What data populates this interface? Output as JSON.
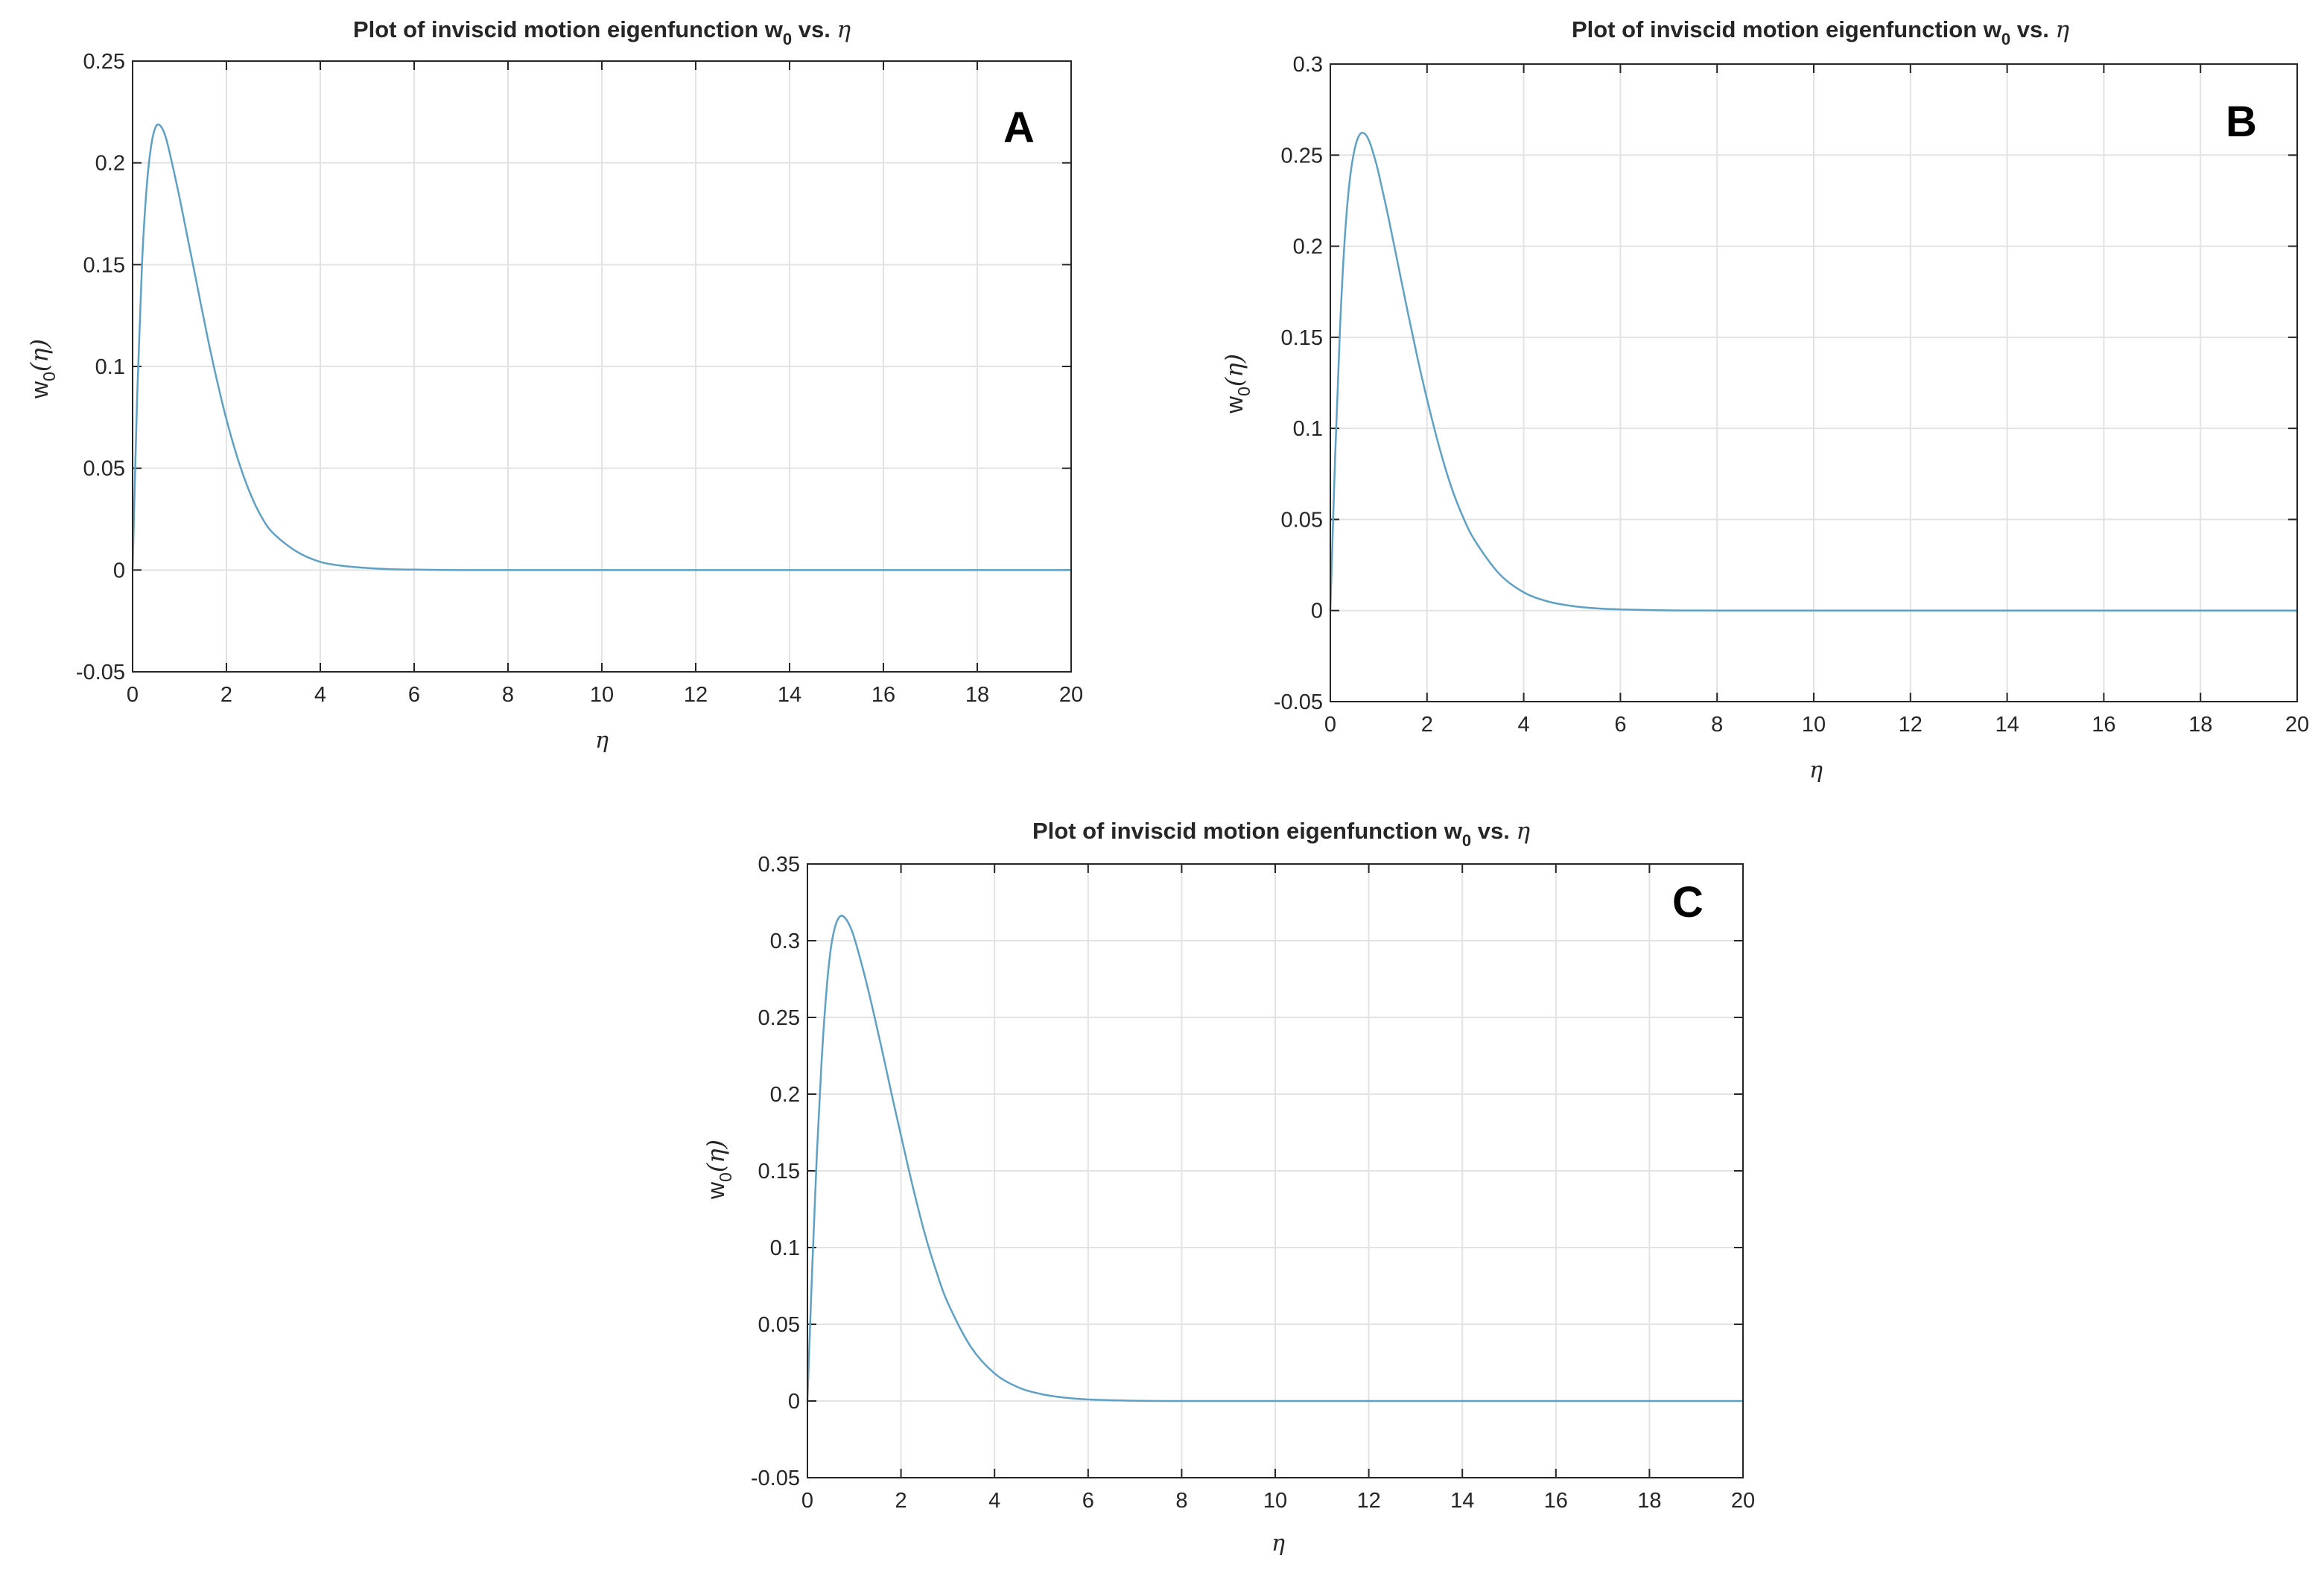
{
  "colors": {
    "curve": "#5ea1c4",
    "axis": "#262626",
    "grid": "#e3e3e3"
  },
  "chart_data": [
    {
      "type": "line",
      "panel": "A",
      "title": "Plot of inviscid motion eigenfunction w",
      "title_subscript": "0",
      "title_suffix": " vs. ",
      "title_symbol": "η",
      "xlabel": "η",
      "ylabel_main": "w",
      "ylabel_sub": "0",
      "ylabel_arg": "(η)",
      "xlim": [
        0,
        20
      ],
      "ylim": [
        -0.05,
        0.25
      ],
      "xticks": [
        0,
        2,
        4,
        6,
        8,
        10,
        12,
        14,
        16,
        18,
        20
      ],
      "yticks": [
        -0.05,
        0,
        0.05,
        0.1,
        0.15,
        0.2,
        0.25
      ],
      "ytick_labels": [
        "-0.05",
        "0",
        "0.05",
        "0.1",
        "0.15",
        "0.2",
        "0.25"
      ],
      "grid": true,
      "series": [
        {
          "name": "w0",
          "x": [
            0,
            0.1,
            0.2,
            0.3,
            0.4,
            0.5,
            0.6,
            0.7,
            0.8,
            1.0,
            1.2,
            1.4,
            1.6,
            1.8,
            2.0,
            2.25,
            2.5,
            2.75,
            3.0,
            3.5,
            4.0,
            4.5,
            5.0,
            5.5,
            6.0,
            7.0,
            8.0,
            10.0,
            12.0,
            14.0,
            16.0,
            18.0,
            20.0
          ],
          "y": [
            0,
            0.087,
            0.15,
            0.188,
            0.209,
            0.218,
            0.218,
            0.213,
            0.204,
            0.183,
            0.16,
            0.137,
            0.114,
            0.093,
            0.074,
            0.054,
            0.038,
            0.026,
            0.018,
            0.009,
            0.004,
            0.002,
            0.001,
            0.0004,
            0.0002,
            0,
            0,
            0,
            0,
            0,
            0,
            0,
            0
          ]
        }
      ]
    },
    {
      "type": "line",
      "panel": "B",
      "title": "Plot of inviscid motion eigenfunction w",
      "title_subscript": "0",
      "title_suffix": " vs. ",
      "title_symbol": "η",
      "xlabel": "η",
      "ylabel_main": "w",
      "ylabel_sub": "0",
      "ylabel_arg": "(η)",
      "xlim": [
        0,
        20
      ],
      "ylim": [
        -0.05,
        0.3
      ],
      "xticks": [
        0,
        2,
        4,
        6,
        8,
        10,
        12,
        14,
        16,
        18,
        20
      ],
      "yticks": [
        -0.05,
        0,
        0.05,
        0.1,
        0.15,
        0.2,
        0.25,
        0.3
      ],
      "ytick_labels": [
        "-0.05",
        "0",
        "0.05",
        "0.1",
        "0.15",
        "0.2",
        "0.25",
        "0.3"
      ],
      "grid": true,
      "series": [
        {
          "name": "w0",
          "x": [
            0,
            0.1,
            0.2,
            0.3,
            0.4,
            0.5,
            0.6,
            0.7,
            0.8,
            0.9,
            1.0,
            1.2,
            1.4,
            1.6,
            1.8,
            2.0,
            2.25,
            2.5,
            2.75,
            3.0,
            3.5,
            4.0,
            4.5,
            5.0,
            5.5,
            6.0,
            7.0,
            8.0,
            10.0,
            12.0,
            14.0,
            16.0,
            18.0,
            20.0
          ],
          "y": [
            0,
            0.085,
            0.155,
            0.205,
            0.236,
            0.253,
            0.261,
            0.262,
            0.258,
            0.25,
            0.24,
            0.216,
            0.19,
            0.164,
            0.139,
            0.116,
            0.09,
            0.068,
            0.051,
            0.038,
            0.02,
            0.01,
            0.005,
            0.0025,
            0.0012,
            0.0006,
            0.0001,
            0,
            0,
            0,
            0,
            0,
            0,
            0
          ]
        }
      ]
    },
    {
      "type": "line",
      "panel": "C",
      "title": "Plot of inviscid motion eigenfunction w",
      "title_subscript": "0",
      "title_suffix": " vs. ",
      "title_symbol": "η",
      "xlabel": "η",
      "ylabel_main": "w",
      "ylabel_sub": "0",
      "ylabel_arg": "(η)",
      "xlim": [
        0,
        20
      ],
      "ylim": [
        -0.05,
        0.35
      ],
      "xticks": [
        0,
        2,
        4,
        6,
        8,
        10,
        12,
        14,
        16,
        18,
        20
      ],
      "yticks": [
        -0.05,
        0,
        0.05,
        0.1,
        0.15,
        0.2,
        0.25,
        0.3,
        0.35
      ],
      "ytick_labels": [
        "-0.05",
        "0",
        "0.05",
        "0.1",
        "0.15",
        "0.2",
        "0.25",
        "0.3",
        "0.35"
      ],
      "grid": true,
      "series": [
        {
          "name": "w0",
          "x": [
            0,
            0.1,
            0.2,
            0.3,
            0.4,
            0.5,
            0.6,
            0.7,
            0.8,
            0.9,
            1.0,
            1.2,
            1.4,
            1.6,
            1.8,
            2.0,
            2.25,
            2.5,
            2.75,
            3.0,
            3.5,
            4.0,
            4.5,
            5.0,
            5.5,
            6.0,
            7.0,
            8.0,
            10.0,
            12.0,
            14.0,
            16.0,
            18.0,
            20.0
          ],
          "y": [
            0,
            0.085,
            0.16,
            0.22,
            0.265,
            0.295,
            0.31,
            0.316,
            0.315,
            0.31,
            0.302,
            0.28,
            0.255,
            0.228,
            0.2,
            0.173,
            0.14,
            0.11,
            0.085,
            0.064,
            0.035,
            0.018,
            0.009,
            0.0045,
            0.0022,
            0.001,
            0.0002,
            0,
            0,
            0,
            0,
            0,
            0,
            0
          ]
        }
      ]
    }
  ]
}
